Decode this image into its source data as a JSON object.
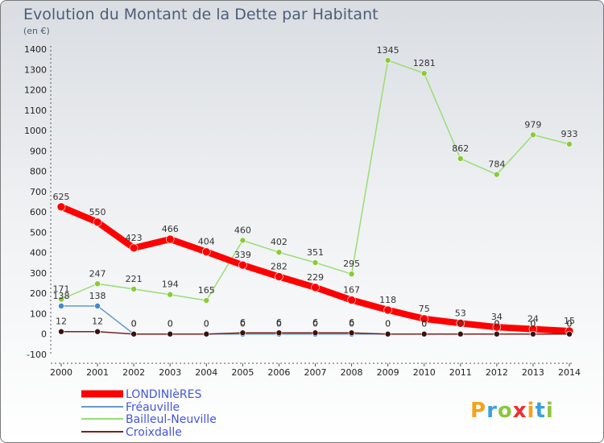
{
  "chart_data": {
    "type": "line",
    "title": "Evolution du Montant de la Dette par Habitant",
    "subtitle": "(en €)",
    "xlabel": "",
    "ylabel": "",
    "ylim": [
      -100,
      1400
    ],
    "yticks": [
      -100,
      0,
      100,
      200,
      300,
      400,
      500,
      600,
      700,
      800,
      900,
      1000,
      1100,
      1200,
      1300,
      1400
    ],
    "x": [
      "2000",
      "2001",
      "2002",
      "2003",
      "2004",
      "2005",
      "2006",
      "2007",
      "2008",
      "2009",
      "2010",
      "2011",
      "2012",
      "2013",
      "2014"
    ],
    "grid": false,
    "legend_position": "bottom-left",
    "series": [
      {
        "name": "LONDINIèRES",
        "color": "#ff0000",
        "values": [
          625,
          550,
          423,
          466,
          404,
          339,
          282,
          229,
          167,
          118,
          75,
          53,
          34,
          24,
          15
        ]
      },
      {
        "name": "Fréauville",
        "color": "#6699cc",
        "values": [
          138,
          138,
          0,
          0,
          0,
          0,
          0,
          0,
          0,
          0,
          0,
          0,
          0,
          0,
          0
        ]
      },
      {
        "name": "Bailleul-Neuville",
        "color": "#99dd77",
        "values": [
          171,
          247,
          221,
          194,
          165,
          460,
          402,
          351,
          295,
          1345,
          1281,
          862,
          784,
          979,
          933
        ]
      },
      {
        "name": "Croixdalle",
        "color": "#772222",
        "values": [
          12,
          12,
          0,
          0,
          0,
          6,
          6,
          6,
          6,
          0,
          0,
          0,
          0,
          0,
          0
        ]
      }
    ]
  },
  "branding": {
    "logo_text": "Proxiti"
  }
}
